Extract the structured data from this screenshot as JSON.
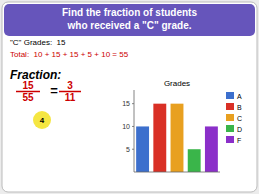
{
  "chart_data": {
    "type": "bar",
    "title": "Grades",
    "categories": [
      "A",
      "B",
      "C",
      "D",
      "F"
    ],
    "values": [
      10,
      15,
      15,
      5,
      10
    ],
    "colors": [
      "#3c6fcd",
      "#d93025",
      "#e8a020",
      "#3ab54a",
      "#8b2fc9"
    ],
    "ylim": [
      0,
      18
    ],
    "yticks": [
      5,
      10,
      15
    ],
    "legend": "right",
    "tick_labels": "y",
    "annotations": [
      "Find the fraction of students",
      "who received a \"C\" grade.",
      "\"C\" Grades:  15",
      "Total:  10 + 15 + 15 + 5 + 10 = 55",
      "Fraction:",
      "15",
      "55",
      "=",
      "3",
      "11",
      "4"
    ]
  }
}
